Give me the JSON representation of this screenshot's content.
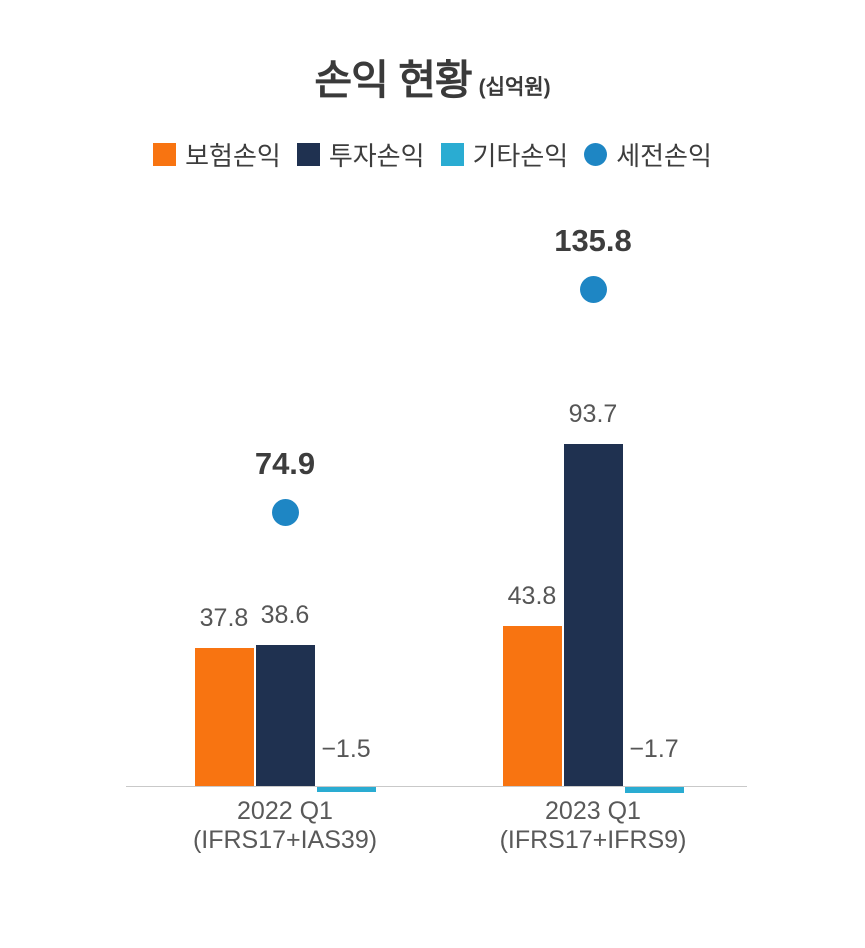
{
  "title": {
    "main": "손익 현황",
    "unit": "(십억원)"
  },
  "chart_data": {
    "type": "bar",
    "title": "손익 현황",
    "unit_label": "(십억원)",
    "legend_position": "top",
    "grid": false,
    "ylim": [
      -5,
      150
    ],
    "categories": [
      {
        "line1": "2022 Q1",
        "line2": "(IFRS17+IAS39)"
      },
      {
        "line1": "2023 Q1",
        "line2": "(IFRS17+IFRS9)"
      }
    ],
    "series": [
      {
        "name": "보험손익",
        "key": "insurance-profit",
        "type": "bar",
        "color": "#F87411",
        "values": [
          37.8,
          43.8
        ]
      },
      {
        "name": "투자손익",
        "key": "investment-profit",
        "type": "bar",
        "color": "#1F3150",
        "values": [
          38.6,
          93.7
        ]
      },
      {
        "name": "기타손익",
        "key": "other-profit",
        "type": "bar",
        "color": "#2AACD2",
        "values": [
          -1.5,
          -1.7
        ]
      },
      {
        "name": "세전손익",
        "key": "pretax-profit",
        "type": "point",
        "color": "#1E86C4",
        "values": [
          74.9,
          135.8
        ]
      }
    ]
  }
}
